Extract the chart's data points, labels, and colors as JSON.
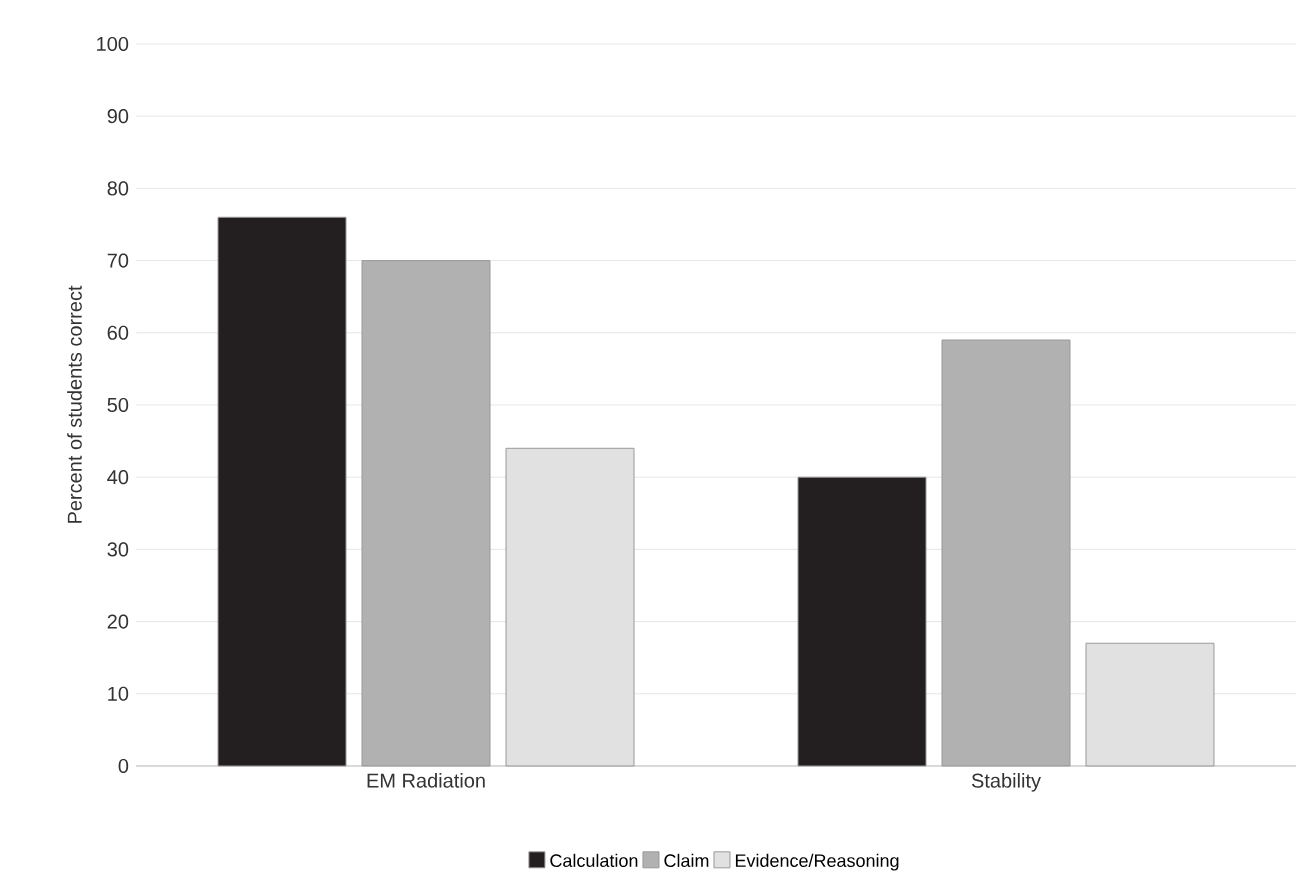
{
  "chart_data": {
    "type": "bar",
    "ylabel": "Percent of students correct",
    "categories": [
      "EM Radiation",
      "Stability"
    ],
    "series": [
      {
        "name": "Calculation",
        "color": "#231f20",
        "values": [
          76,
          40
        ]
      },
      {
        "name": "Claim",
        "color": "#b1b1b1",
        "values": [
          70,
          59
        ]
      },
      {
        "name": "Evidence/Reasoning",
        "color": "#e1e1e2",
        "values": [
          44,
          17
        ]
      }
    ],
    "ylim": [
      0,
      100
    ],
    "yticks": [
      0,
      10,
      20,
      30,
      40,
      50,
      60,
      70,
      80,
      90,
      100
    ],
    "grid": "y",
    "legend": "bottom"
  }
}
